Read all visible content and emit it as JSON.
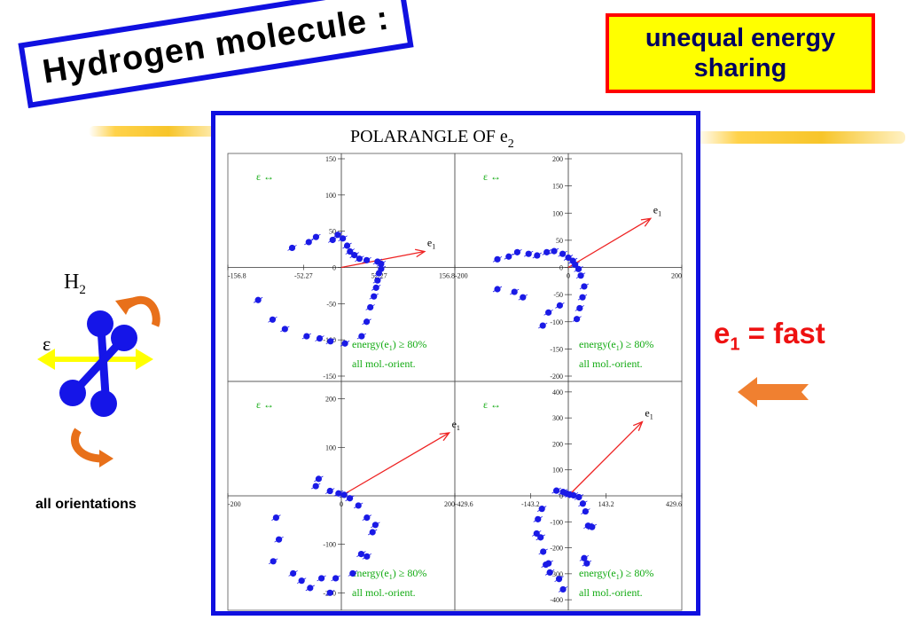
{
  "slide": {
    "title": "Hydrogen molecule :",
    "note": [
      "unequal energy",
      "sharing"
    ],
    "fast_label": "e",
    "fast_sub": "1",
    "fast_rest": " = fast",
    "orientation_label": "all orientations",
    "molecule_label": "H",
    "molecule_sub": "2",
    "epsilon_label": "ε"
  },
  "colors": {
    "frame": "#1010e0",
    "points": "#1a1ae6",
    "arrow": "#ee2222",
    "annotation": "#11aa11",
    "note_bg": "#ffff00",
    "note_border": "#ff0000"
  },
  "chart_data": [
    {
      "type": "scatter",
      "title": "POLARANGLE OF e",
      "title_sub": "2",
      "xlim": [
        -156.8,
        156.8
      ],
      "ylim": [
        -150,
        150
      ],
      "x_ticks": [
        "-156.8",
        "-52.27",
        "52.27",
        "156.8"
      ],
      "y_ticks": [
        "150",
        "100",
        "50",
        "0",
        "-50",
        "-100",
        "-150"
      ],
      "label_tl": "ε ↔",
      "ann1": "energy(e",
      "ann1_sub": "1",
      "ann1_rest": ") ≥ 80%",
      "ann2": "all mol.-orient.",
      "arrow_label": "e",
      "arrow_sub": "1",
      "arrow": [
        [
          0,
          0
        ],
        [
          115,
          22
        ]
      ],
      "points": [
        [
          -68,
          27
        ],
        [
          -45,
          35
        ],
        [
          -35,
          42
        ],
        [
          -12,
          38
        ],
        [
          -5,
          45
        ],
        [
          2,
          40
        ],
        [
          8,
          30
        ],
        [
          12,
          22
        ],
        [
          18,
          17
        ],
        [
          25,
          12
        ],
        [
          35,
          10
        ],
        [
          50,
          8
        ],
        [
          55,
          5
        ],
        [
          55,
          -2
        ],
        [
          52,
          -8
        ],
        [
          50,
          -18
        ],
        [
          48,
          -28
        ],
        [
          45,
          -40
        ],
        [
          40,
          -55
        ],
        [
          35,
          -75
        ],
        [
          28,
          -95
        ],
        [
          5,
          -105
        ],
        [
          -15,
          -102
        ],
        [
          -30,
          -98
        ],
        [
          -48,
          -95
        ],
        [
          -78,
          -85
        ],
        [
          -95,
          -72
        ],
        [
          -115,
          -45
        ]
      ]
    },
    {
      "type": "scatter",
      "xlim": [
        -200,
        200
      ],
      "ylim": [
        -200,
        200
      ],
      "x_ticks": [
        "-200",
        "0",
        "200"
      ],
      "y_ticks": [
        "200",
        "150",
        "100",
        "50",
        "0",
        "-50",
        "-100",
        "-150",
        "-200"
      ],
      "label_tl": "ε ↔",
      "ann1": "energy(e",
      "ann1_sub": "1",
      "ann1_rest": ") ≥ 80%",
      "ann2": "all mol.-orient.",
      "arrow_label": "e",
      "arrow_sub": "1",
      "arrow": [
        [
          0,
          0
        ],
        [
          145,
          90
        ]
      ],
      "points": [
        [
          -125,
          15
        ],
        [
          -105,
          20
        ],
        [
          -90,
          28
        ],
        [
          -70,
          25
        ],
        [
          -55,
          22
        ],
        [
          -38,
          28
        ],
        [
          -25,
          30
        ],
        [
          -10,
          25
        ],
        [
          0,
          18
        ],
        [
          8,
          12
        ],
        [
          12,
          5
        ],
        [
          18,
          -3
        ],
        [
          22,
          -15
        ],
        [
          28,
          -35
        ],
        [
          25,
          -55
        ],
        [
          20,
          -75
        ],
        [
          15,
          -95
        ],
        [
          -15,
          -70
        ],
        [
          -35,
          -83
        ],
        [
          -45,
          -107
        ],
        [
          -80,
          -55
        ],
        [
          -95,
          -45
        ],
        [
          -125,
          -40
        ]
      ]
    },
    {
      "type": "scatter",
      "xlim": [
        -200,
        200
      ],
      "ylim": [
        -225,
        225
      ],
      "x_ticks": [
        "-200",
        "0",
        "200"
      ],
      "y_ticks": [
        "200",
        "100",
        "-100",
        "-200"
      ],
      "label_tl": "ε ↔",
      "ann1": "energy(e",
      "ann1_sub": "1",
      "ann1_rest": ") ≥ 80%",
      "ann2": "all mol.-orient.",
      "arrow_label": "e",
      "arrow_sub": "1",
      "arrow": [
        [
          0,
          0
        ],
        [
          190,
          130
        ]
      ],
      "points": [
        [
          -40,
          35
        ],
        [
          -45,
          20
        ],
        [
          -20,
          10
        ],
        [
          -5,
          5
        ],
        [
          5,
          2
        ],
        [
          15,
          -5
        ],
        [
          30,
          -20
        ],
        [
          45,
          -45
        ],
        [
          60,
          -60
        ],
        [
          55,
          -75
        ],
        [
          35,
          -120
        ],
        [
          45,
          -125
        ],
        [
          20,
          -160
        ],
        [
          -10,
          -170
        ],
        [
          -55,
          -190
        ],
        [
          -35,
          -170
        ],
        [
          -70,
          -175
        ],
        [
          -85,
          -160
        ],
        [
          -120,
          -135
        ],
        [
          -110,
          -90
        ],
        [
          -115,
          -45
        ],
        [
          -20,
          -200
        ]
      ]
    },
    {
      "type": "scatter",
      "xlim": [
        -429.6,
        429.6
      ],
      "ylim": [
        -420,
        420
      ],
      "x_ticks": [
        "-429.6",
        "-143.2",
        "143.2",
        "429.6"
      ],
      "y_ticks": [
        "400",
        "300",
        "200",
        "100",
        "0",
        "-100",
        "-200",
        "-300",
        "-400"
      ],
      "label_tl": "ε ↔",
      "ann1": "energy(e",
      "ann1_sub": "1",
      "ann1_rest": ") ≥ 80%",
      "ann2": "all mol.-orient.",
      "arrow_label": "e",
      "arrow_sub": "1",
      "arrow": [
        [
          0,
          0
        ],
        [
          280,
          285
        ]
      ],
      "points": [
        [
          -45,
          20
        ],
        [
          -20,
          15
        ],
        [
          -5,
          8
        ],
        [
          5,
          5
        ],
        [
          20,
          2
        ],
        [
          40,
          -5
        ],
        [
          55,
          -30
        ],
        [
          65,
          -60
        ],
        [
          75,
          -115
        ],
        [
          90,
          -120
        ],
        [
          60,
          -240
        ],
        [
          70,
          -260
        ],
        [
          -100,
          -50
        ],
        [
          -115,
          -90
        ],
        [
          -120,
          -145
        ],
        [
          -105,
          -160
        ],
        [
          -95,
          -215
        ],
        [
          -75,
          -260
        ],
        [
          -85,
          -265
        ],
        [
          -70,
          -295
        ],
        [
          -35,
          -320
        ],
        [
          -20,
          -360
        ]
      ]
    }
  ]
}
